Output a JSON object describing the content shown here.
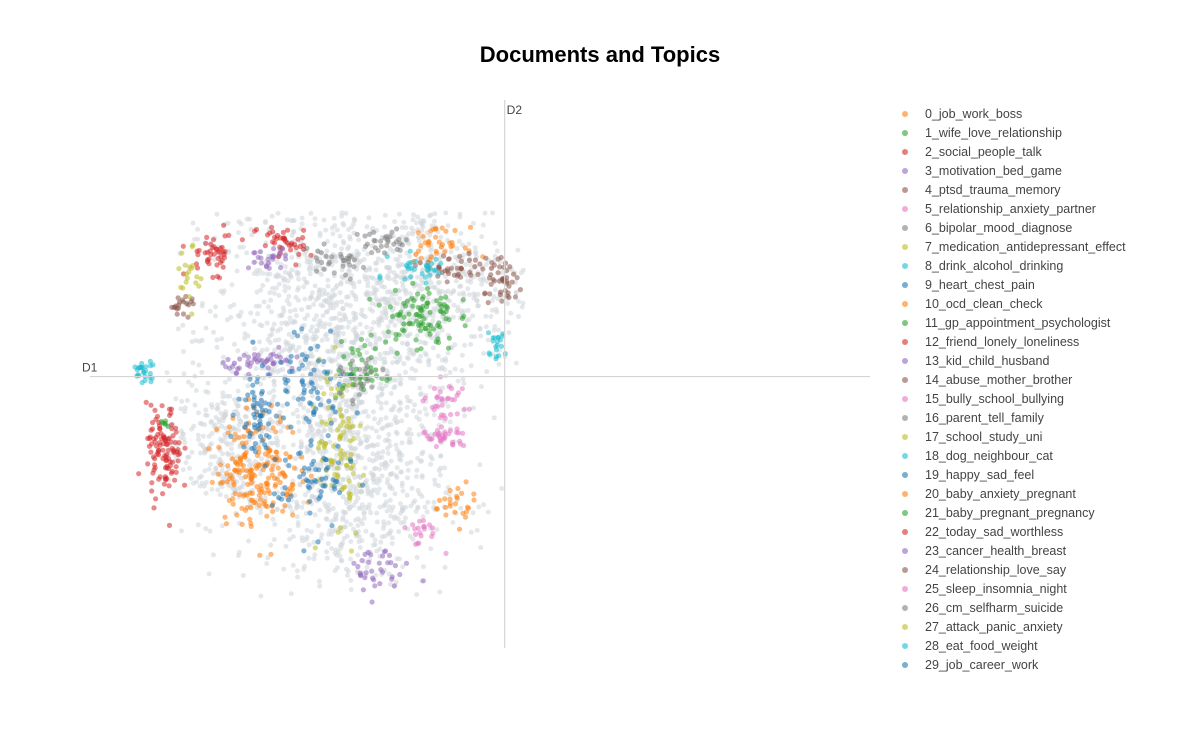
{
  "chart_data": {
    "type": "scatter",
    "title": "Documents and Topics",
    "xlabel": "D1",
    "ylabel": "D2",
    "xlim": [
      -8.4,
      7.4
    ],
    "ylim": [
      -5.3,
      5.4
    ],
    "axis_lines_at_zero": true,
    "grid": false,
    "legend_position": "right",
    "background_points_color": "#cfd6db",
    "topics": [
      {
        "name": "0_job_work_boss",
        "color": "#ff7f0e"
      },
      {
        "name": "1_wife_love_relationship",
        "color": "#2ca02c"
      },
      {
        "name": "2_social_people_talk",
        "color": "#d62728"
      },
      {
        "name": "3_motivation_bed_game",
        "color": "#9467bd"
      },
      {
        "name": "4_ptsd_trauma_memory",
        "color": "#8c564b"
      },
      {
        "name": "5_relationship_anxiety_partner",
        "color": "#e377c2"
      },
      {
        "name": "6_bipolar_mood_diagnose",
        "color": "#7f7f7f"
      },
      {
        "name": "7_medication_antidepressant_effect",
        "color": "#bcbd22"
      },
      {
        "name": "8_drink_alcohol_drinking",
        "color": "#17becf"
      },
      {
        "name": "9_heart_chest_pain",
        "color": "#1f77b4"
      },
      {
        "name": "10_ocd_clean_check",
        "color": "#ff7f0e"
      },
      {
        "name": "11_gp_appointment_psychologist",
        "color": "#2ca02c"
      },
      {
        "name": "12_friend_lonely_loneliness",
        "color": "#d62728"
      },
      {
        "name": "13_kid_child_husband",
        "color": "#9467bd"
      },
      {
        "name": "14_abuse_mother_brother",
        "color": "#8c564b"
      },
      {
        "name": "15_bully_school_bullying",
        "color": "#e377c2"
      },
      {
        "name": "16_parent_tell_family",
        "color": "#7f7f7f"
      },
      {
        "name": "17_school_study_uni",
        "color": "#bcbd22"
      },
      {
        "name": "18_dog_neighbour_cat",
        "color": "#17becf"
      },
      {
        "name": "19_happy_sad_feel",
        "color": "#1f77b4"
      },
      {
        "name": "20_baby_anxiety_pregnant",
        "color": "#ff7f0e"
      },
      {
        "name": "21_baby_pregnant_pregnancy",
        "color": "#2ca02c"
      },
      {
        "name": "22_today_sad_worthless",
        "color": "#d62728"
      },
      {
        "name": "23_cancer_health_breast",
        "color": "#9467bd"
      },
      {
        "name": "24_relationship_love_say",
        "color": "#8c564b"
      },
      {
        "name": "25_sleep_insomnia_night",
        "color": "#e377c2"
      },
      {
        "name": "26_cm_selfharm_suicide",
        "color": "#7f7f7f"
      },
      {
        "name": "27_attack_panic_anxiety",
        "color": "#bcbd22"
      },
      {
        "name": "28_eat_food_weight",
        "color": "#17becf"
      },
      {
        "name": "29_job_career_work",
        "color": "#1f77b4"
      }
    ],
    "clusters": [
      {
        "topic": 0,
        "x": -5.0,
        "y": -1.8,
        "sx": 0.42,
        "sy": 0.55,
        "n": 190
      },
      {
        "topic": 1,
        "x": -1.7,
        "y": 1.2,
        "sx": 0.35,
        "sy": 0.35,
        "n": 90
      },
      {
        "topic": 2,
        "x": -6.9,
        "y": -1.5,
        "sx": 0.18,
        "sy": 0.45,
        "n": 110
      },
      {
        "topic": 3,
        "x": -4.9,
        "y": 0.3,
        "sx": 0.4,
        "sy": 0.1,
        "n": 45
      },
      {
        "topic": 4,
        "x": 0.0,
        "y": 1.8,
        "sx": 0.2,
        "sy": 0.2,
        "n": 40
      },
      {
        "topic": 5,
        "x": -1.2,
        "y": -1.2,
        "sx": 0.25,
        "sy": 0.12,
        "n": 35
      },
      {
        "topic": 6,
        "x": -3.5,
        "y": 2.2,
        "sx": 0.4,
        "sy": 0.15,
        "n": 30
      },
      {
        "topic": 7,
        "x": -3.2,
        "y": -1.4,
        "sx": 0.12,
        "sy": 1.1,
        "n": 45
      },
      {
        "topic": 8,
        "x": -0.2,
        "y": 0.6,
        "sx": 0.12,
        "sy": 0.12,
        "n": 20
      },
      {
        "topic": 9,
        "x": -5.0,
        "y": -0.6,
        "sx": 0.2,
        "sy": 0.5,
        "n": 60
      },
      {
        "topic": 10,
        "x": -1.4,
        "y": 2.6,
        "sx": 0.3,
        "sy": 0.15,
        "n": 35
      },
      {
        "topic": 11,
        "x": -2.9,
        "y": 0.1,
        "sx": 0.25,
        "sy": 0.3,
        "n": 45
      },
      {
        "topic": 12,
        "x": -5.9,
        "y": 2.4,
        "sx": 0.25,
        "sy": 0.2,
        "n": 45
      },
      {
        "topic": 13,
        "x": -2.6,
        "y": -3.8,
        "sx": 0.35,
        "sy": 0.25,
        "n": 35
      },
      {
        "topic": 14,
        "x": -1.0,
        "y": 2.1,
        "sx": 0.35,
        "sy": 0.15,
        "n": 40
      },
      {
        "topic": 15,
        "x": -1.7,
        "y": -3.0,
        "sx": 0.2,
        "sy": 0.15,
        "n": 20
      },
      {
        "topic": 16,
        "x": -2.5,
        "y": 2.6,
        "sx": 0.3,
        "sy": 0.12,
        "n": 30
      },
      {
        "topic": 17,
        "x": -3.5,
        "y": -1.2,
        "sx": 0.15,
        "sy": 0.8,
        "n": 40
      },
      {
        "topic": 18,
        "x": -1.7,
        "y": 2.1,
        "sx": 0.3,
        "sy": 0.15,
        "n": 30
      },
      {
        "topic": 19,
        "x": -3.9,
        "y": -2.0,
        "sx": 0.4,
        "sy": 0.5,
        "n": 60
      },
      {
        "topic": 20,
        "x": -1.0,
        "y": -2.5,
        "sx": 0.2,
        "sy": 0.2,
        "n": 25
      },
      {
        "topic": 21,
        "x": -6.9,
        "y": -0.9,
        "sx": 0.06,
        "sy": 0.04,
        "n": 6
      },
      {
        "topic": 22,
        "x": -4.5,
        "y": 2.6,
        "sx": 0.25,
        "sy": 0.2,
        "n": 40
      },
      {
        "topic": 23,
        "x": -4.8,
        "y": 2.3,
        "sx": 0.2,
        "sy": 0.1,
        "n": 25
      },
      {
        "topic": 24,
        "x": -6.5,
        "y": 1.4,
        "sx": 0.15,
        "sy": 0.1,
        "n": 20
      },
      {
        "topic": 25,
        "x": -1.2,
        "y": -0.5,
        "sx": 0.2,
        "sy": 0.2,
        "n": 30
      },
      {
        "topic": 26,
        "x": -2.9,
        "y": -0.1,
        "sx": 0.2,
        "sy": 0.2,
        "n": 25
      },
      {
        "topic": 27,
        "x": -6.4,
        "y": 1.9,
        "sx": 0.12,
        "sy": 0.3,
        "n": 20
      },
      {
        "topic": 28,
        "x": -7.3,
        "y": 0.1,
        "sx": 0.12,
        "sy": 0.1,
        "n": 25
      },
      {
        "topic": 29,
        "x": -3.9,
        "y": 0.0,
        "sx": 0.4,
        "sy": 0.5,
        "n": 60
      }
    ]
  }
}
